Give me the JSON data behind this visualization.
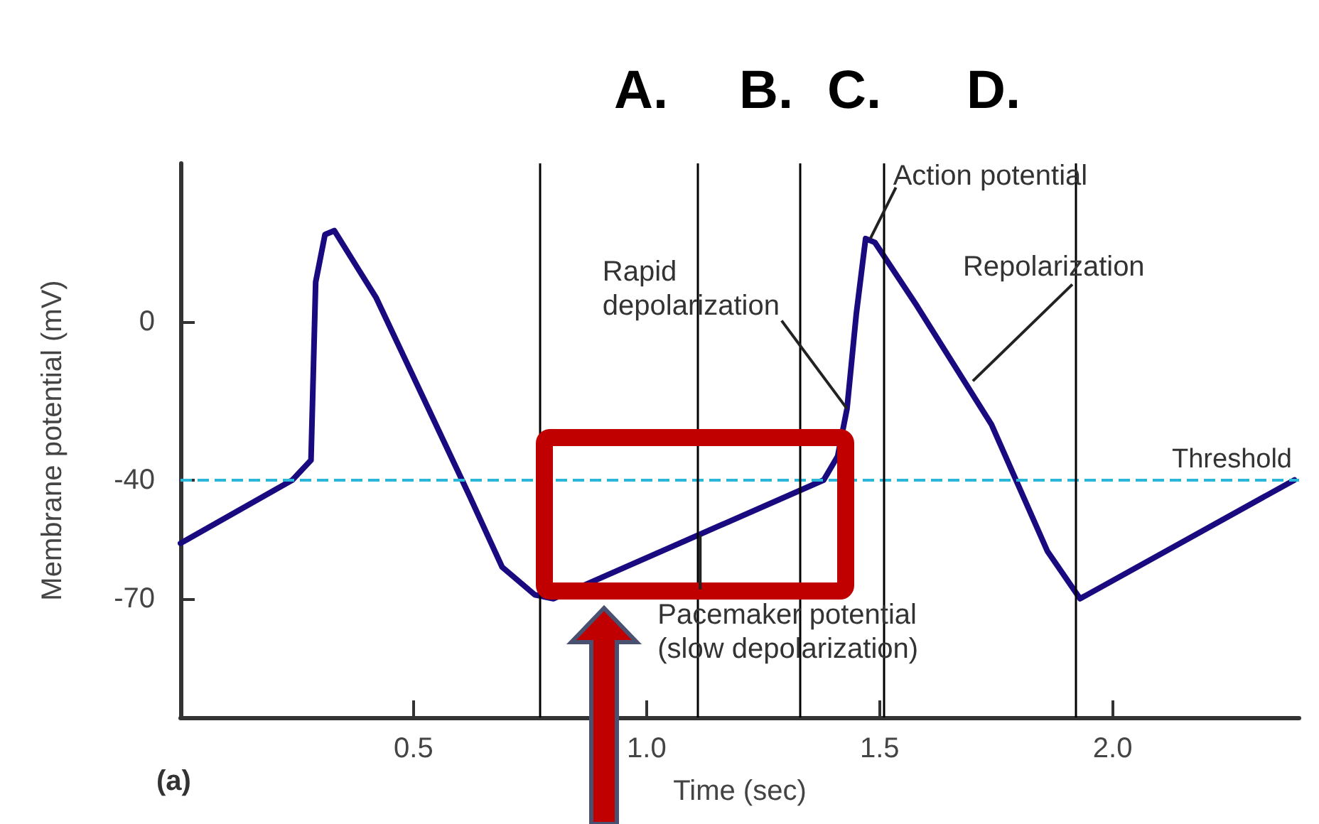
{
  "chart_data": {
    "type": "line",
    "xlabel": "Time (sec)",
    "ylabel": "Membrane potential (mV)",
    "x": [
      0,
      0.24,
      0.28,
      0.29,
      0.31,
      0.33,
      0.42,
      0.52,
      0.62,
      0.69,
      0.76,
      0.8,
      1.38,
      1.41,
      1.43,
      1.45,
      1.47,
      1.49,
      1.58,
      1.74,
      1.86,
      1.93,
      2.39
    ],
    "series": [
      {
        "color": "#1a0a80",
        "values": [
          -56,
          -40,
          -35,
          10,
          22,
          23,
          6,
          -19,
          -44,
          -62,
          -69,
          -70,
          -40,
          -34,
          -22,
          2,
          21,
          20,
          4,
          -26,
          -58,
          -70,
          -40
        ]
      }
    ],
    "xlim": [
      0,
      2.4
    ],
    "ylim": [
      -100,
      40
    ],
    "xticks": [
      0.5,
      {
        "value": 1,
        "label": "1.0"
      },
      1.5,
      {
        "value": 2,
        "label": "2.0"
      }
    ],
    "yticks": [
      -70,
      -40,
      0
    ],
    "ref_lines": [
      {
        "axis": "y",
        "value": -40,
        "label": "Threshold",
        "color": "#29b6d8",
        "line_style": "dashed"
      },
      {
        "axis": "x",
        "value": 0.77,
        "color": "#000000"
      },
      {
        "axis": "x",
        "value": 1.11,
        "color": "#000000"
      },
      {
        "axis": "x",
        "value": 1.33,
        "color": "#000000"
      },
      {
        "axis": "x",
        "value": 1.51,
        "color": "#000000"
      },
      {
        "axis": "x",
        "value": 1.92,
        "color": "#000000"
      }
    ],
    "annotations": [
      {
        "text": "Rapid\ndepolarization",
        "x": 1.43,
        "y": -22
      },
      {
        "text": "Action potential",
        "x": 1.48,
        "y": 21
      },
      {
        "text": "Repolarization",
        "x": 1.7,
        "y": -15
      },
      {
        "text": "Pacemaker potential\n(slow depolarization)",
        "x": 1.115,
        "y": -54
      },
      "A.",
      "B.",
      "C.",
      "D.",
      "(a)"
    ],
    "grid": false,
    "marker": "none",
    "line_style": "solid"
  }
}
